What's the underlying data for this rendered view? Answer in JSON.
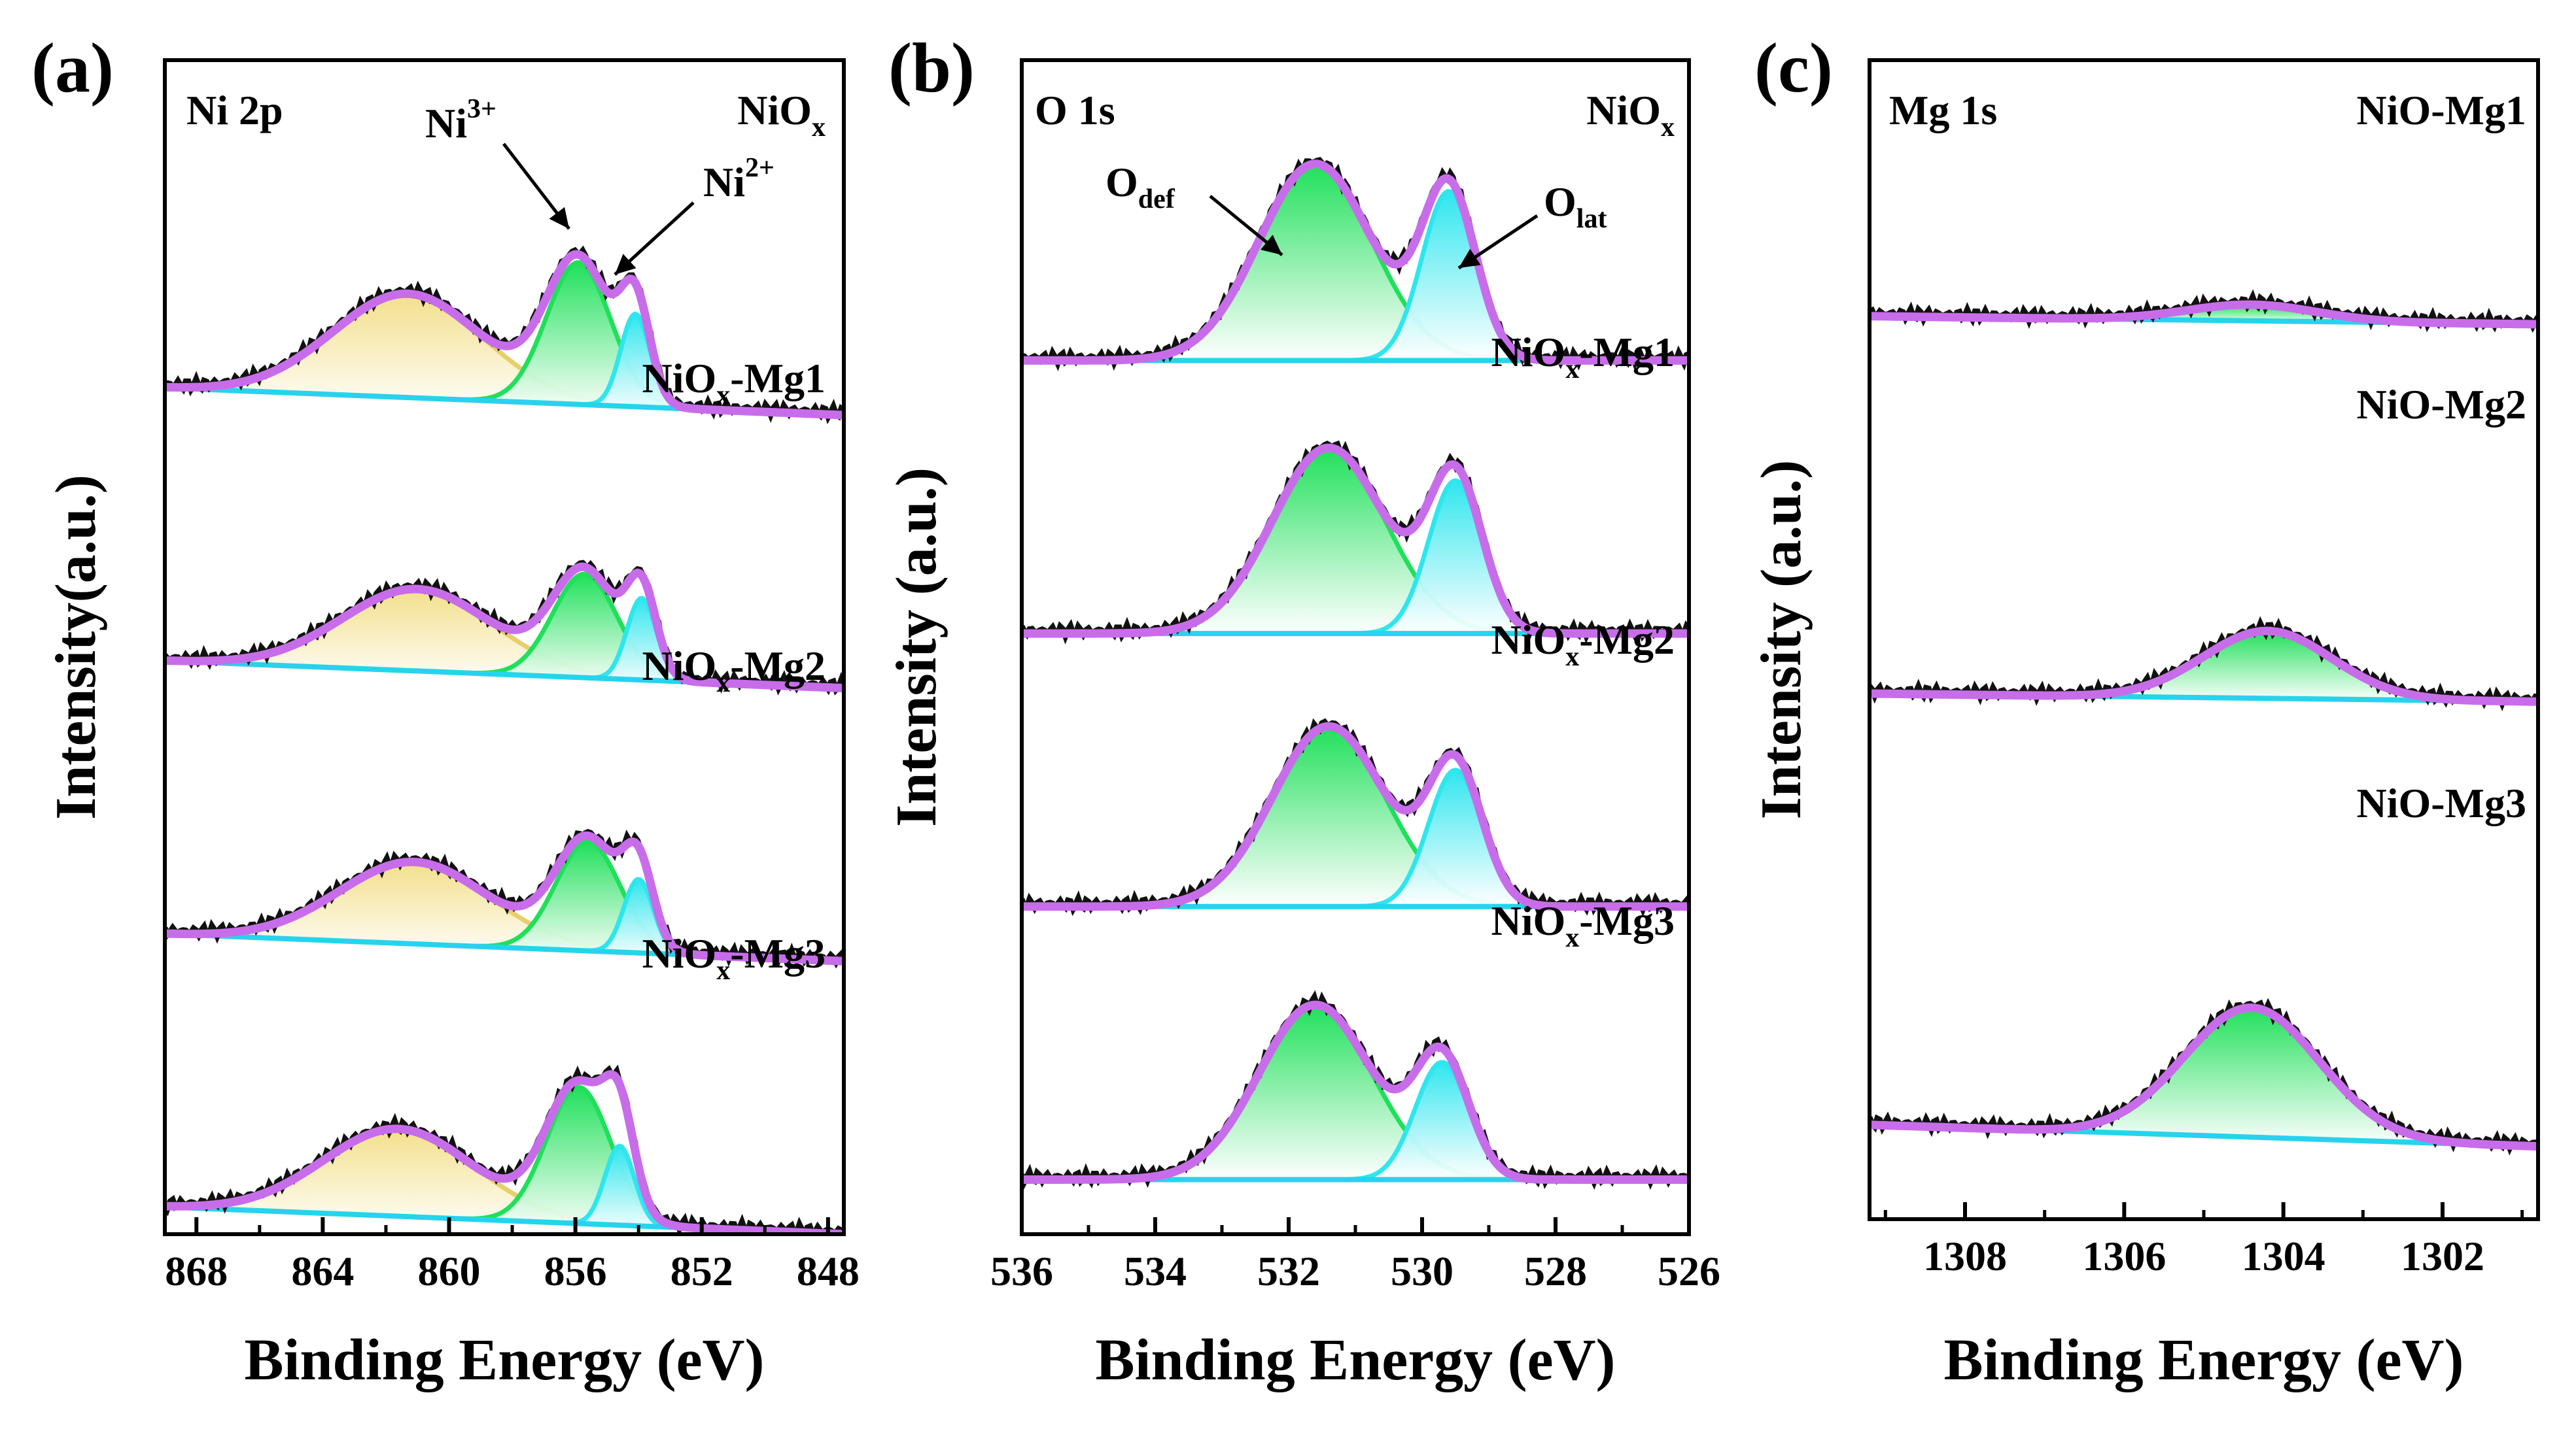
{
  "figure": {
    "panel_labels": [
      "(a)",
      "(b)",
      "(c)"
    ],
    "colors": {
      "envelope": "#c86dea",
      "raw_data": "#111111",
      "satellite_fill": "#f3df8a",
      "ni3_fill": "#1fe05a",
      "ni2_fill": "#2ee6ee",
      "odef_fill": "#1fe05a",
      "olat_fill": "#2ee6ee",
      "mg_fill": "#1fe05a",
      "baseline": "#27d3ec"
    }
  },
  "chart_data": [
    {
      "type": "line",
      "panel": "(a)",
      "title": "Ni 2p",
      "xlabel": "Binding Energy (eV)",
      "ylabel": "Intensity(a.u.)",
      "xlim": [
        869,
        847.5
      ],
      "x_reversed": true,
      "xticks": [
        868,
        864,
        860,
        856,
        852,
        848
      ],
      "xtick_labels": [
        "868",
        "864",
        "860",
        "856",
        "852",
        "848"
      ],
      "ylim": [
        0,
        4.3
      ],
      "yticks": [],
      "grid": false,
      "annotations": [
        {
          "base": "Ni",
          "sup": "3+",
          "points_to": "Ni3+ peak"
        },
        {
          "base": "Ni",
          "sup": "2+",
          "points_to": "Ni2+ peak"
        }
      ],
      "series": [
        {
          "name": "NiOx",
          "label": {
            "base": "NiO",
            "sub": "x",
            "suffix": ""
          },
          "offset": 3.1,
          "baseline": [
            0.0,
            -0.1
          ],
          "peaks": [
            {
              "component": "satellite",
              "center": 861.3,
              "fwhm": 5.6,
              "height": 0.38
            },
            {
              "component": "Ni3+",
              "center": 855.9,
              "fwhm": 2.4,
              "height": 0.52
            },
            {
              "component": "Ni2+",
              "center": 854.1,
              "fwhm": 1.1,
              "height": 0.34
            }
          ]
        },
        {
          "name": "NiOx-Mg1",
          "label": {
            "base": "NiO",
            "sub": "x",
            "suffix": "-Mg1"
          },
          "offset": 2.1,
          "baseline": [
            0.0,
            -0.1
          ],
          "peaks": [
            {
              "component": "satellite",
              "center": 861.0,
              "fwhm": 5.6,
              "height": 0.3
            },
            {
              "component": "Ni3+",
              "center": 855.7,
              "fwhm": 2.4,
              "height": 0.38
            },
            {
              "component": "Ni2+",
              "center": 853.9,
              "fwhm": 1.1,
              "height": 0.3
            }
          ]
        },
        {
          "name": "NiOx-Mg2",
          "label": {
            "base": "NiO",
            "sub": "x",
            "suffix": "-Mg2"
          },
          "offset": 1.1,
          "baseline": [
            0.0,
            -0.1
          ],
          "peaks": [
            {
              "component": "satellite",
              "center": 861.1,
              "fwhm": 5.6,
              "height": 0.3
            },
            {
              "component": "Ni3+",
              "center": 855.6,
              "fwhm": 2.4,
              "height": 0.4
            },
            {
              "component": "Ni2+",
              "center": 854.0,
              "fwhm": 1.1,
              "height": 0.27
            }
          ]
        },
        {
          "name": "NiOx-Mg3",
          "label": {
            "base": "NiO",
            "sub": "x",
            "suffix": "-Mg3"
          },
          "offset": 0.1,
          "baseline": [
            0.0,
            -0.1
          ],
          "peaks": [
            {
              "component": "satellite",
              "center": 861.6,
              "fwhm": 5.6,
              "height": 0.32
            },
            {
              "component": "Ni3+",
              "center": 855.9,
              "fwhm": 2.4,
              "height": 0.5
            },
            {
              "component": "Ni2+",
              "center": 854.6,
              "fwhm": 1.1,
              "height": 0.29
            }
          ]
        }
      ]
    },
    {
      "type": "line",
      "panel": "(b)",
      "title": "O 1s",
      "xlabel": "Binding Energy (eV)",
      "ylabel": "Intensity (a.u.)",
      "xlim": [
        536,
        526
      ],
      "x_reversed": true,
      "xticks": [
        536,
        534,
        532,
        530,
        528,
        526
      ],
      "xtick_labels": [
        "536",
        "534",
        "532",
        "530",
        "528",
        "526"
      ],
      "ylim": [
        0,
        4.3
      ],
      "yticks": [],
      "grid": false,
      "annotations": [
        {
          "base": "O",
          "sub": "def",
          "points_to": "Odef peak"
        },
        {
          "base": "O",
          "sub": "lat",
          "points_to": "Olat peak"
        }
      ],
      "series": [
        {
          "name": "NiOx",
          "label": {
            "base": "NiO",
            "sub": "x",
            "suffix": ""
          },
          "offset": 3.2,
          "baseline": [
            0.0,
            0.0
          ],
          "peaks": [
            {
              "component": "Odef",
              "center": 531.6,
              "fwhm": 2.0,
              "height": 0.72
            },
            {
              "component": "Olat",
              "center": 529.6,
              "fwhm": 0.95,
              "height": 0.62
            }
          ]
        },
        {
          "name": "NiOx-Mg1",
          "label": {
            "base": "NiO",
            "sub": "x",
            "suffix": "-Mg1"
          },
          "offset": 2.2,
          "baseline": [
            0.0,
            0.0
          ],
          "peaks": [
            {
              "component": "Odef",
              "center": 531.4,
              "fwhm": 2.0,
              "height": 0.68
            },
            {
              "component": "Olat",
              "center": 529.5,
              "fwhm": 0.95,
              "height": 0.56
            }
          ]
        },
        {
          "name": "NiOx-Mg2",
          "label": {
            "base": "NiO",
            "sub": "x",
            "suffix": "-Mg2"
          },
          "offset": 1.2,
          "baseline": [
            0.0,
            0.0
          ],
          "peaks": [
            {
              "component": "Odef",
              "center": 531.4,
              "fwhm": 2.0,
              "height": 0.66
            },
            {
              "component": "Olat",
              "center": 529.5,
              "fwhm": 0.95,
              "height": 0.5
            }
          ]
        },
        {
          "name": "NiOx-Mg3",
          "label": {
            "base": "NiO",
            "sub": "x",
            "suffix": "-Mg3"
          },
          "offset": 0.2,
          "baseline": [
            0.0,
            0.0
          ],
          "peaks": [
            {
              "component": "Odef",
              "center": 531.6,
              "fwhm": 2.0,
              "height": 0.64
            },
            {
              "component": "Olat",
              "center": 529.7,
              "fwhm": 0.95,
              "height": 0.43
            }
          ]
        }
      ]
    },
    {
      "type": "line",
      "panel": "(c)",
      "title": "Mg 1s",
      "xlabel": "Binding Energy (eV)",
      "ylabel": "Intensity (a.u.)",
      "xlim": [
        1309.2,
        1300.8
      ],
      "x_reversed": true,
      "xticks": [
        1308,
        1306,
        1304,
        1302
      ],
      "xtick_labels": [
        "1308",
        "1306",
        "1304",
        "1302"
      ],
      "ylim": [
        0,
        4.3
      ],
      "yticks": [],
      "grid": false,
      "annotations": [],
      "series": [
        {
          "name": "NiO-Mg1",
          "label": {
            "base": "NiO-Mg1",
            "sub": "",
            "suffix": ""
          },
          "offset": 3.35,
          "baseline": [
            0.0,
            -0.03
          ],
          "peaks": [
            {
              "component": "Mg 1s",
              "center": 1304.4,
              "fwhm": 1.9,
              "height": 0.06
            }
          ]
        },
        {
          "name": "NiO-Mg2",
          "label": {
            "base": "NiO-Mg2",
            "sub": "",
            "suffix": ""
          },
          "offset": 1.95,
          "baseline": [
            0.0,
            -0.03
          ],
          "peaks": [
            {
              "component": "Mg 1s",
              "center": 1304.2,
              "fwhm": 1.9,
              "height": 0.25
            }
          ]
        },
        {
          "name": "NiO-Mg3",
          "label": {
            "base": "NiO-Mg3",
            "sub": "",
            "suffix": ""
          },
          "offset": 0.35,
          "baseline": [
            0.0,
            -0.08
          ],
          "peaks": [
            {
              "component": "Mg 1s",
              "center": 1304.4,
              "fwhm": 2.0,
              "height": 0.48
            }
          ]
        }
      ]
    }
  ]
}
